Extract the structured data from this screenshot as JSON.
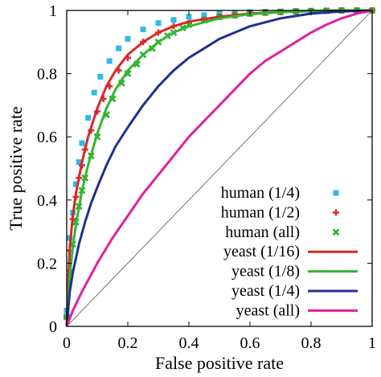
{
  "chart_data": {
    "type": "line",
    "xlabel": "False positive rate",
    "ylabel": "True positive rate",
    "xlim": [
      0,
      1
    ],
    "ylim": [
      0,
      1
    ],
    "xticks": [
      "0",
      "0.2",
      "0.4",
      "0.6",
      "0.8",
      "1"
    ],
    "yticks": [
      "0",
      "0.2",
      "0.4",
      "0.6",
      "0.8",
      "1"
    ],
    "legend_position": "bottom-right",
    "diagonal": true,
    "series": [
      {
        "name": "human (1/4)",
        "kind": "points",
        "marker": "square",
        "color": "#30b8e8",
        "x": [
          0,
          0.01,
          0.02,
          0.03,
          0.04,
          0.05,
          0.07,
          0.09,
          0.11,
          0.14,
          0.17,
          0.2,
          0.25,
          0.3,
          0.35,
          0.4,
          0.45,
          0.5,
          0.55,
          0.6,
          0.65,
          0.7,
          0.75,
          0.8,
          0.85,
          0.9,
          0.95,
          1.0
        ],
        "y": [
          0.05,
          0.28,
          0.36,
          0.45,
          0.52,
          0.58,
          0.66,
          0.74,
          0.79,
          0.84,
          0.88,
          0.91,
          0.94,
          0.96,
          0.97,
          0.98,
          0.985,
          0.99,
          0.993,
          0.995,
          0.996,
          0.997,
          0.998,
          0.999,
          0.999,
          1.0,
          1.0,
          1.0
        ]
      },
      {
        "name": "human (1/2)",
        "kind": "points",
        "marker": "plus",
        "color": "#d83030",
        "x": [
          0,
          0.01,
          0.02,
          0.03,
          0.04,
          0.05,
          0.06,
          0.08,
          0.1,
          0.12,
          0.14,
          0.17,
          0.2,
          0.25,
          0.3,
          0.35,
          0.4,
          0.45,
          0.5,
          0.55,
          0.6,
          0.65,
          0.7,
          0.75,
          0.8,
          0.85,
          0.9,
          0.95,
          1.0
        ],
        "y": [
          0.03,
          0.24,
          0.34,
          0.41,
          0.47,
          0.51,
          0.56,
          0.62,
          0.68,
          0.72,
          0.76,
          0.81,
          0.85,
          0.9,
          0.93,
          0.95,
          0.96,
          0.97,
          0.98,
          0.985,
          0.99,
          0.993,
          0.995,
          0.997,
          0.998,
          0.999,
          1.0,
          1.0,
          1.0
        ]
      },
      {
        "name": "human (all)",
        "kind": "points",
        "marker": "cross",
        "color": "#30b030",
        "x": [
          0,
          0.01,
          0.02,
          0.03,
          0.04,
          0.05,
          0.06,
          0.08,
          0.1,
          0.13,
          0.15,
          0.18,
          0.2,
          0.23,
          0.25,
          0.28,
          0.3,
          0.33,
          0.35,
          0.38,
          0.4,
          0.45,
          0.5,
          0.55,
          0.6,
          0.65,
          0.7,
          0.75,
          0.8,
          0.85,
          0.9,
          0.95,
          1.0
        ],
        "y": [
          0.03,
          0.17,
          0.26,
          0.33,
          0.38,
          0.43,
          0.47,
          0.54,
          0.6,
          0.67,
          0.72,
          0.77,
          0.8,
          0.83,
          0.86,
          0.88,
          0.9,
          0.92,
          0.93,
          0.945,
          0.955,
          0.97,
          0.98,
          0.985,
          0.99,
          0.993,
          0.995,
          0.997,
          0.998,
          0.999,
          1.0,
          1.0,
          1.0
        ]
      },
      {
        "name": "yeast (1/16)",
        "kind": "line",
        "color": "#d82828",
        "x": [
          0,
          0.01,
          0.02,
          0.03,
          0.05,
          0.07,
          0.1,
          0.13,
          0.16,
          0.2,
          0.25,
          0.3,
          0.35,
          0.4,
          0.5,
          0.6,
          0.7,
          0.8,
          0.9,
          1.0
        ],
        "y": [
          0,
          0.25,
          0.35,
          0.42,
          0.52,
          0.6,
          0.69,
          0.76,
          0.81,
          0.86,
          0.9,
          0.93,
          0.95,
          0.965,
          0.98,
          0.99,
          0.995,
          0.998,
          1.0,
          1.0
        ]
      },
      {
        "name": "yeast (1/8)",
        "kind": "line",
        "color": "#30b830",
        "x": [
          0,
          0.01,
          0.02,
          0.03,
          0.05,
          0.07,
          0.1,
          0.13,
          0.16,
          0.2,
          0.25,
          0.3,
          0.35,
          0.4,
          0.5,
          0.6,
          0.7,
          0.8,
          0.9,
          1.0
        ],
        "y": [
          0,
          0.16,
          0.25,
          0.32,
          0.43,
          0.51,
          0.61,
          0.69,
          0.75,
          0.81,
          0.86,
          0.9,
          0.93,
          0.95,
          0.975,
          0.988,
          0.995,
          0.998,
          1.0,
          1.0
        ]
      },
      {
        "name": "yeast (1/4)",
        "kind": "line",
        "color": "#203090",
        "x": [
          0,
          0.01,
          0.02,
          0.04,
          0.06,
          0.08,
          0.1,
          0.13,
          0.16,
          0.2,
          0.25,
          0.3,
          0.35,
          0.4,
          0.45,
          0.5,
          0.55,
          0.6,
          0.7,
          0.8,
          0.9,
          1.0
        ],
        "y": [
          0,
          0.11,
          0.17,
          0.26,
          0.33,
          0.39,
          0.44,
          0.51,
          0.57,
          0.63,
          0.7,
          0.76,
          0.81,
          0.85,
          0.88,
          0.91,
          0.93,
          0.95,
          0.975,
          0.99,
          0.997,
          1.0
        ]
      },
      {
        "name": "yeast (all)",
        "kind": "line",
        "color": "#e020a0",
        "x": [
          0,
          0.02,
          0.05,
          0.1,
          0.15,
          0.2,
          0.25,
          0.3,
          0.35,
          0.4,
          0.45,
          0.5,
          0.55,
          0.6,
          0.65,
          0.7,
          0.75,
          0.8,
          0.85,
          0.9,
          0.95,
          1.0
        ],
        "y": [
          0,
          0.05,
          0.11,
          0.2,
          0.28,
          0.35,
          0.42,
          0.48,
          0.54,
          0.6,
          0.65,
          0.7,
          0.75,
          0.8,
          0.84,
          0.87,
          0.9,
          0.93,
          0.955,
          0.975,
          0.99,
          1.0
        ]
      }
    ]
  }
}
